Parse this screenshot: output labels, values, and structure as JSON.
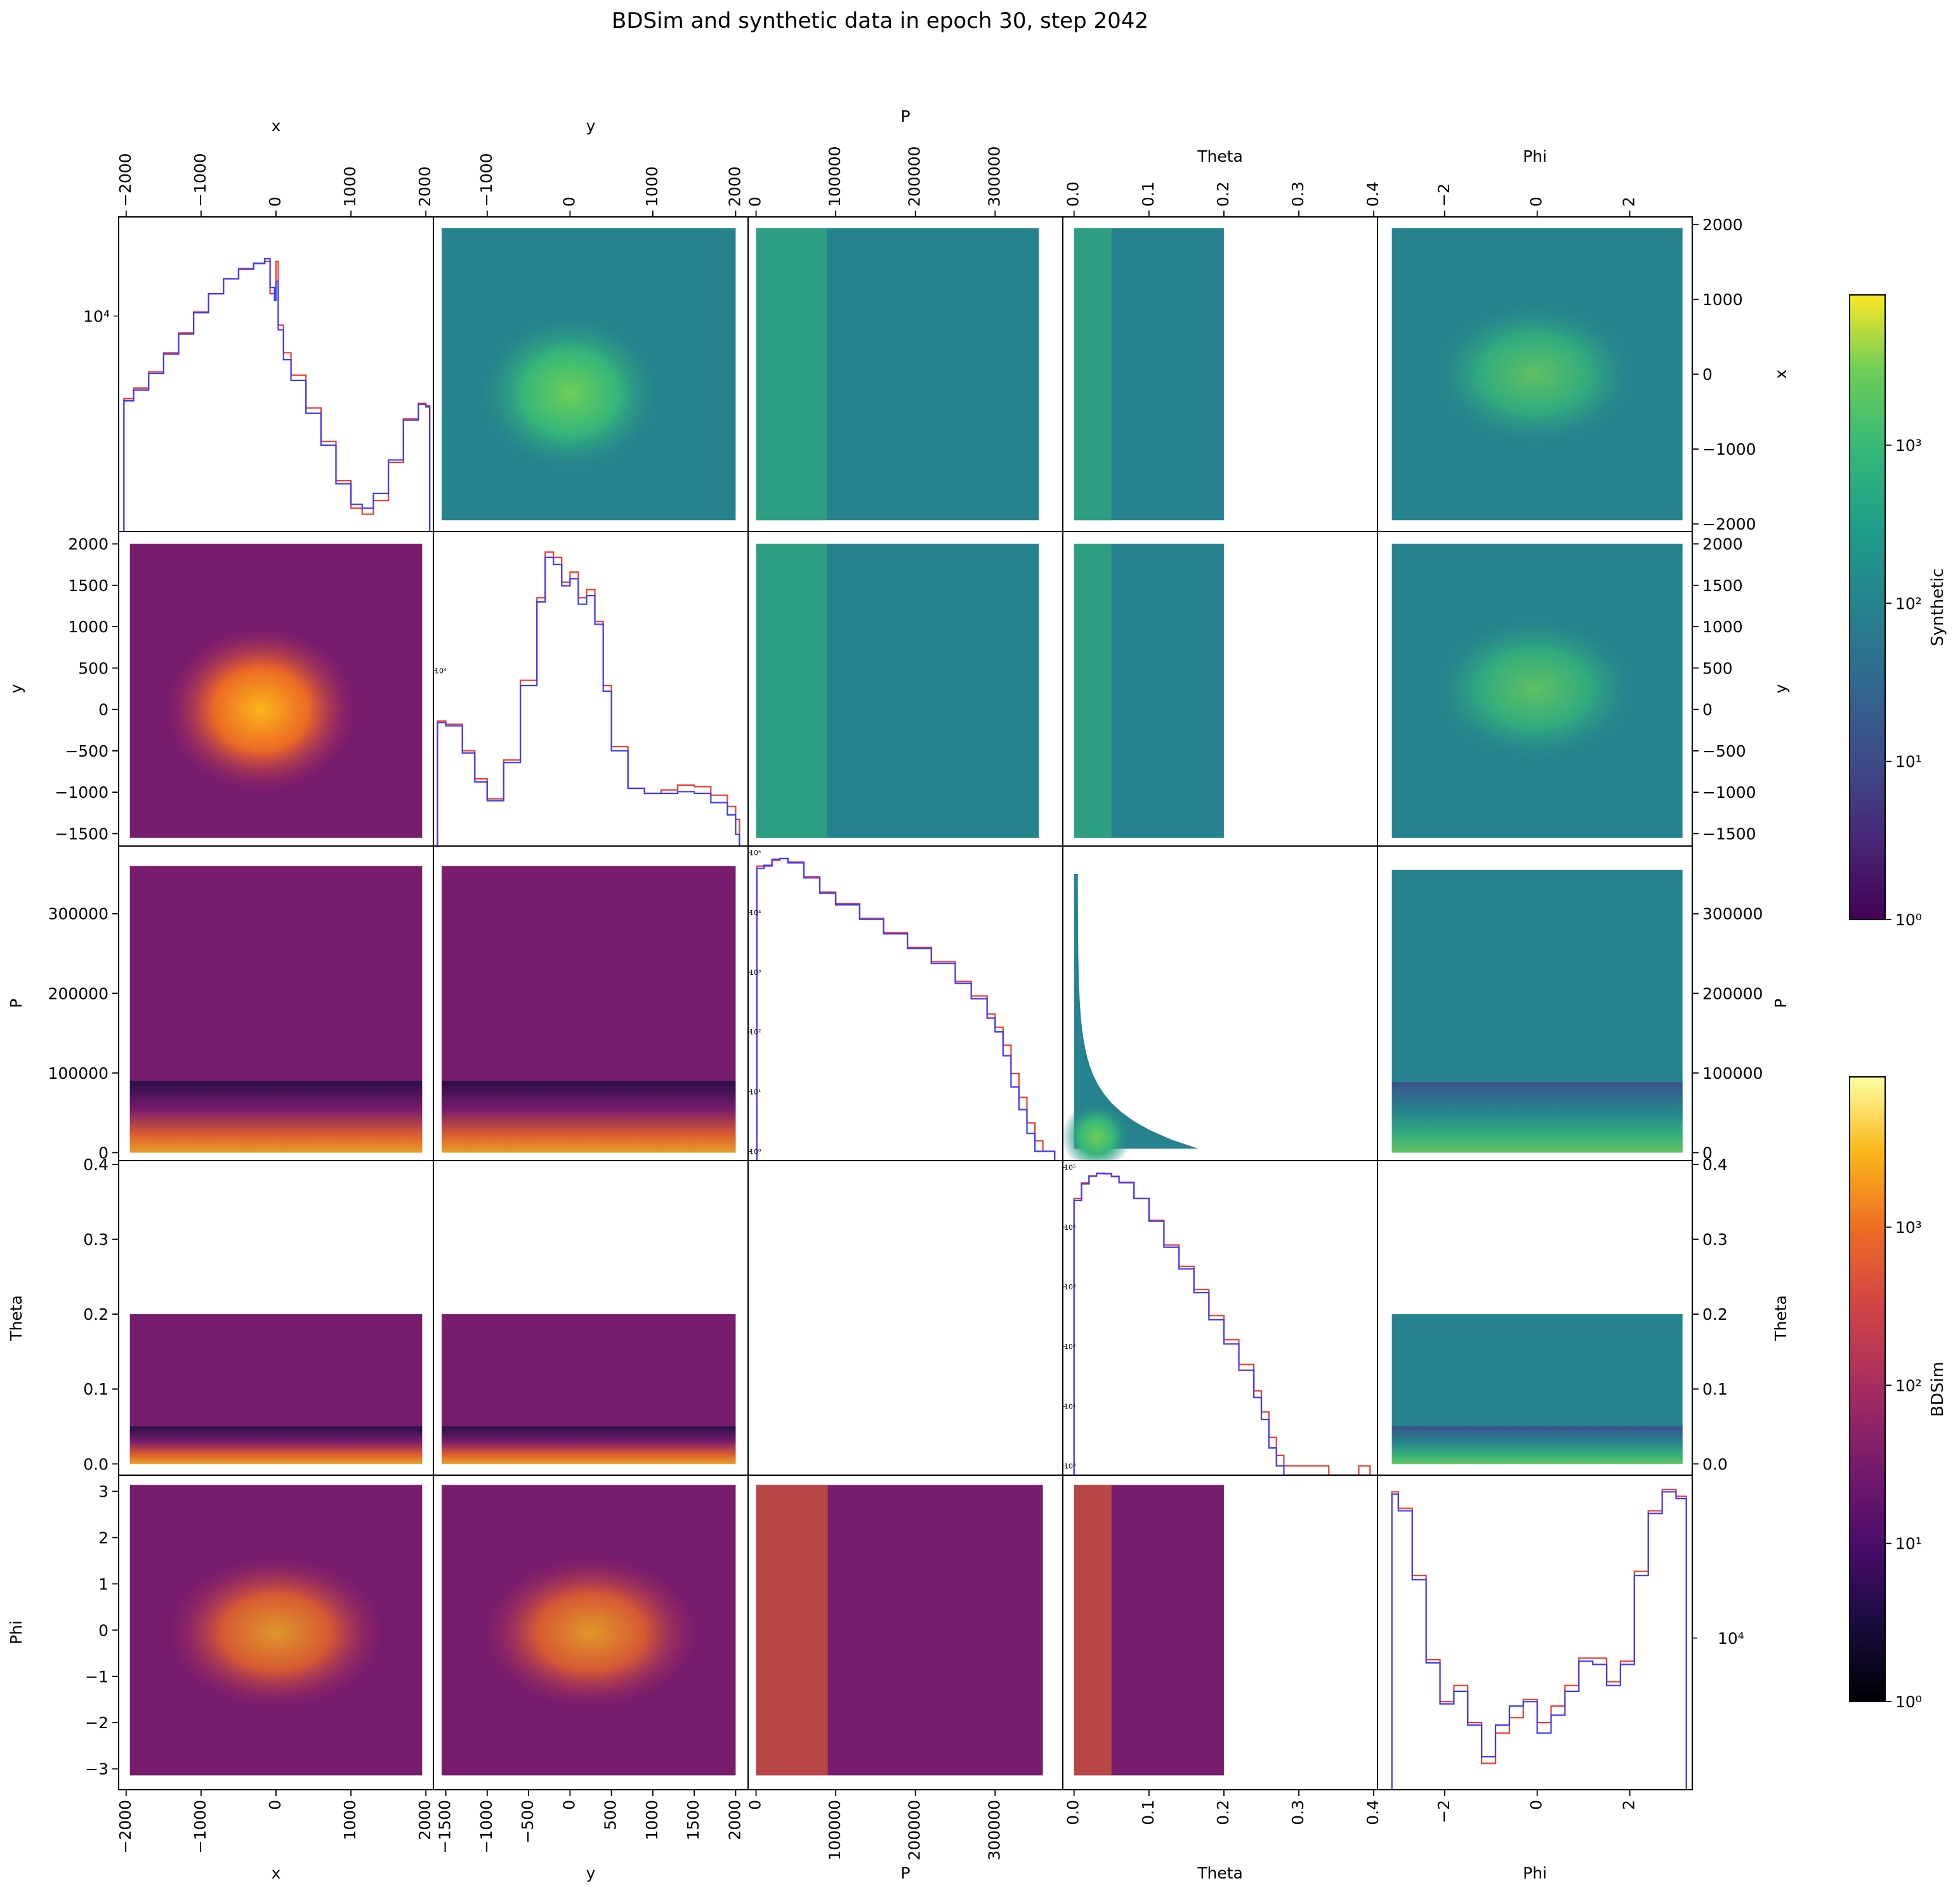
{
  "figure": {
    "title": "BDSim and synthetic data in epoch 30, step 2042"
  },
  "chart_data": {
    "type": "heatmap",
    "kind": "pair-plot (corner plot) of 5 variables; lower triangle = BDSim 2D histograms, upper triangle = Synthetic 2D histograms, diagonal = 1D histograms (red = BDSim, blue = Synthetic)",
    "variables": [
      "x",
      "y",
      "P",
      "Theta",
      "Phi"
    ],
    "variable_ranges": {
      "x": [
        -2100,
        2100
      ],
      "y": [
        -1650,
        2150
      ],
      "P": [
        -10000,
        385000
      ],
      "Theta": [
        -0.015,
        0.405
      ],
      "Phi": [
        -3.45,
        3.35
      ]
    },
    "ticks": {
      "x": {
        "values": [
          -2000,
          -1000,
          0,
          1000,
          2000
        ],
        "labels": [
          "−2000",
          "−1000",
          "0",
          "1000",
          "2000"
        ]
      },
      "y": {
        "values": [
          -1500,
          -1000,
          -500,
          0,
          500,
          1000,
          1500,
          2000
        ],
        "labels": [
          "−1500",
          "−1000",
          "−500",
          "0",
          "500",
          "1000",
          "1500",
          "2000"
        ]
      },
      "y_top": {
        "values": [
          -1000,
          0,
          1000,
          2000
        ],
        "labels": [
          "−1000",
          "0",
          "1000",
          "2000"
        ]
      },
      "P": {
        "values": [
          0,
          100000,
          200000,
          300000
        ],
        "labels": [
          "0",
          "100000",
          "200000",
          "300000"
        ]
      },
      "Theta": {
        "values": [
          0.0,
          0.1,
          0.2,
          0.3,
          0.4
        ],
        "labels": [
          "0.0",
          "0.1",
          "0.2",
          "0.3",
          "0.4"
        ]
      },
      "Phi_rows": {
        "values": [
          -3,
          -2,
          -1,
          0,
          1,
          2,
          3
        ],
        "labels": [
          "−3",
          "−2",
          "−1",
          "0",
          "1",
          "2",
          "3"
        ]
      },
      "Phi_cols": {
        "values": [
          -2,
          0,
          2
        ],
        "labels": [
          "−2",
          "0",
          "2"
        ]
      }
    },
    "diagonal": {
      "series": [
        {
          "name": "BDSim",
          "color": "#ef3b2c"
        },
        {
          "name": "Synthetic",
          "color": "#3b3bff"
        }
      ],
      "log_scale": true,
      "tick_labels": {
        "x": [
          "10⁴"
        ],
        "y": [
          "10⁴"
        ],
        "P": [
          "10⁰",
          "10¹",
          "10²",
          "10³",
          "10⁴",
          "10⁵"
        ],
        "Theta": [
          "10⁰",
          "10¹",
          "10²",
          "10³",
          "10⁴",
          "10⁵"
        ],
        "Phi": [
          "10⁴"
        ]
      },
      "x": {
        "bins": [
          -2030,
          -1900,
          -1700,
          -1500,
          -1300,
          -1100,
          -900,
          -700,
          -500,
          -300,
          -150,
          -80,
          -20,
          0,
          30,
          100,
          200,
          400,
          600,
          800,
          1000,
          1150,
          1300,
          1500,
          1700,
          1900,
          2000
        ],
        "bdsim": [
          3800,
          4300,
          5200,
          6500,
          8200,
          10500,
          13000,
          15500,
          17500,
          18500,
          19000,
          13000,
          14000,
          19000,
          9000,
          6500,
          5000,
          3400,
          2300,
          1450,
          1050,
          980,
          1150,
          1800,
          3000,
          3600,
          3500
        ],
        "synthetic": [
          3700,
          4200,
          5100,
          6400,
          8100,
          10400,
          13000,
          15500,
          17300,
          18600,
          19600,
          14000,
          12000,
          15000,
          8500,
          6000,
          4700,
          3200,
          2200,
          1400,
          1100,
          1050,
          1250,
          1850,
          2950,
          3550,
          3450
        ]
      },
      "y": {
        "bins": [
          -1600,
          -1500,
          -1300,
          -1150,
          -1000,
          -800,
          -600,
          -400,
          -300,
          -200,
          -100,
          0,
          100,
          200,
          300,
          400,
          500,
          700,
          900,
          1100,
          1300,
          1500,
          1700,
          1900,
          2000
        ],
        "bdsim": [
          5800,
          5600,
          4200,
          3100,
          2500,
          3800,
          9000,
          22000,
          36000,
          34000,
          26000,
          29000,
          22000,
          24000,
          17000,
          8500,
          4400,
          2800,
          2650,
          2750,
          2900,
          2850,
          2600,
          2300,
          2000
        ],
        "synthetic": [
          5700,
          5500,
          4100,
          3000,
          2450,
          3700,
          8500,
          21000,
          34000,
          31500,
          25000,
          27000,
          20500,
          22500,
          16500,
          8000,
          4200,
          2800,
          2650,
          2650,
          2700,
          2650,
          2400,
          2100,
          1700
        ]
      },
      "P": {
        "bins": [
          1000,
          10000,
          20000,
          30000,
          40000,
          60000,
          80000,
          100000,
          130000,
          160000,
          190000,
          220000,
          250000,
          270000,
          290000,
          300000,
          310000,
          320000,
          330000,
          340000,
          350000,
          360000,
          370000
        ],
        "bdsim": [
          60000,
          60000,
          75000,
          80000,
          70000,
          40000,
          22000,
          14000,
          8000,
          4600,
          2600,
          1500,
          700,
          400,
          200,
          120,
          60,
          20,
          8,
          3,
          1.5,
          1,
          1
        ],
        "synthetic": [
          55000,
          62000,
          78000,
          80000,
          68000,
          38000,
          21000,
          13500,
          7700,
          4400,
          2500,
          1400,
          650,
          360,
          170,
          100,
          40,
          12,
          5,
          2,
          1,
          1,
          1
        ]
      },
      "Theta": {
        "bins": [
          0.0,
          0.01,
          0.02,
          0.03,
          0.04,
          0.05,
          0.06,
          0.08,
          0.1,
          0.12,
          0.14,
          0.16,
          0.18,
          0.2,
          0.22,
          0.24,
          0.25,
          0.26,
          0.27,
          0.28,
          0.3,
          0.32,
          0.34,
          0.36,
          0.38,
          0.39
        ],
        "bdsim": [
          30000,
          55000,
          72000,
          80000,
          78000,
          70000,
          55000,
          30000,
          13000,
          5000,
          2200,
          900,
          330,
          130,
          50,
          18,
          8,
          3,
          1.5,
          1,
          1,
          1,
          0,
          0,
          1,
          1
        ],
        "synthetic": [
          28000,
          53000,
          71000,
          79000,
          79000,
          71000,
          56000,
          30000,
          12500,
          4600,
          2000,
          800,
          280,
          110,
          40,
          14,
          6,
          2,
          1,
          0,
          0,
          0,
          0,
          0,
          0,
          0
        ]
      },
      "Phi": {
        "bins": [
          -3.14,
          -3.0,
          -2.7,
          -2.4,
          -2.1,
          -1.8,
          -1.5,
          -1.2,
          -0.9,
          -0.6,
          -0.3,
          0.0,
          0.3,
          0.6,
          0.9,
          1.2,
          1.5,
          1.8,
          2.1,
          2.4,
          2.7,
          3.0,
          3.14
        ],
        "bdsim": [
          30000,
          26500,
          16000,
          8500,
          6200,
          7000,
          5300,
          3900,
          4900,
          5500,
          6300,
          5300,
          6000,
          7000,
          8600,
          8600,
          7200,
          8400,
          16500,
          26000,
          30500,
          29000,
          29000
        ],
        "synthetic": [
          29500,
          26000,
          15500,
          8300,
          6100,
          6700,
          5200,
          4100,
          5200,
          6000,
          6200,
          4900,
          5600,
          6700,
          8400,
          8200,
          7000,
          8200,
          16000,
          25500,
          30000,
          28500,
          28500
        ]
      }
    },
    "off_diagonal": {
      "lower": "BDSim 2D histogram (inferno colormap, log scale)",
      "upper": "Synthetic 2D histogram (viridis colormap, log scale)"
    },
    "colorbars": [
      {
        "label": "Synthetic",
        "colormap": "viridis",
        "scale": "log",
        "tick_labels": [
          "10⁰",
          "10¹",
          "10²",
          "10³"
        ]
      },
      {
        "label": "BDSim",
        "colormap": "inferno",
        "scale": "log",
        "tick_labels": [
          "10⁰",
          "10¹",
          "10²",
          "10³"
        ]
      }
    ],
    "grid": false,
    "legend": "none"
  }
}
